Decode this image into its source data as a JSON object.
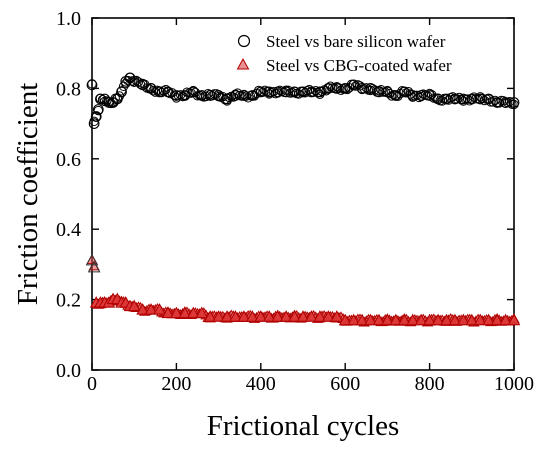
{
  "chart_data": {
    "type": "scatter",
    "title": "",
    "xlabel": "Frictional cycles",
    "ylabel": "Friction  coefficient",
    "xlim": [
      0,
      1000
    ],
    "ylim": [
      0.0,
      1.0
    ],
    "xticks": [
      0,
      200,
      400,
      600,
      800,
      1000
    ],
    "xtick_labels": [
      "0",
      "200",
      "400",
      "600",
      "800",
      "1000"
    ],
    "yticks": [
      0.0,
      0.2,
      0.4,
      0.6,
      0.8,
      1.0
    ],
    "ytick_labels": [
      "0.0",
      "0.2",
      "0.4",
      "0.6",
      "0.8",
      "1.0"
    ],
    "grid": false,
    "legend_position": "top-right",
    "series": [
      {
        "name": "Steel vs bare silicon wafer",
        "marker": "circle",
        "color": "#000000",
        "x": [
          0,
          5,
          10,
          15,
          20,
          30,
          40,
          50,
          60,
          70,
          80,
          90,
          100,
          120,
          140,
          160,
          180,
          200,
          220,
          240,
          260,
          280,
          300,
          320,
          340,
          360,
          380,
          400,
          420,
          440,
          460,
          480,
          500,
          520,
          540,
          560,
          580,
          600,
          620,
          640,
          660,
          680,
          700,
          720,
          740,
          760,
          780,
          800,
          820,
          840,
          860,
          880,
          900,
          920,
          940,
          960,
          980,
          1000
        ],
        "y": [
          0.81,
          0.7,
          0.72,
          0.74,
          0.77,
          0.77,
          0.76,
          0.76,
          0.77,
          0.79,
          0.82,
          0.83,
          0.82,
          0.81,
          0.8,
          0.79,
          0.79,
          0.78,
          0.78,
          0.79,
          0.78,
          0.78,
          0.78,
          0.77,
          0.78,
          0.78,
          0.78,
          0.79,
          0.79,
          0.79,
          0.79,
          0.79,
          0.79,
          0.79,
          0.79,
          0.8,
          0.8,
          0.8,
          0.81,
          0.8,
          0.8,
          0.79,
          0.79,
          0.78,
          0.79,
          0.78,
          0.78,
          0.78,
          0.77,
          0.77,
          0.77,
          0.77,
          0.77,
          0.77,
          0.77,
          0.76,
          0.76,
          0.76
        ]
      },
      {
        "name": "Steel vs CBG-coated wafer",
        "marker": "triangle",
        "color": "#cc1f1f",
        "x": [
          0,
          5,
          10,
          20,
          30,
          40,
          50,
          60,
          70,
          80,
          90,
          100,
          120,
          140,
          160,
          180,
          200,
          220,
          240,
          260,
          280,
          300,
          320,
          340,
          360,
          380,
          400,
          420,
          440,
          460,
          480,
          500,
          520,
          540,
          560,
          580,
          600,
          620,
          640,
          660,
          680,
          700,
          720,
          740,
          760,
          780,
          800,
          820,
          840,
          860,
          880,
          900,
          920,
          940,
          960,
          980,
          1000
        ],
        "y": [
          0.31,
          0.29,
          0.19,
          0.19,
          0.19,
          0.19,
          0.2,
          0.2,
          0.19,
          0.19,
          0.18,
          0.18,
          0.17,
          0.17,
          0.17,
          0.16,
          0.16,
          0.16,
          0.16,
          0.16,
          0.15,
          0.15,
          0.15,
          0.15,
          0.15,
          0.15,
          0.15,
          0.15,
          0.15,
          0.15,
          0.15,
          0.15,
          0.15,
          0.15,
          0.15,
          0.15,
          0.14,
          0.14,
          0.14,
          0.14,
          0.14,
          0.14,
          0.14,
          0.14,
          0.14,
          0.14,
          0.14,
          0.14,
          0.14,
          0.14,
          0.14,
          0.14,
          0.14,
          0.14,
          0.14,
          0.14,
          0.14
        ]
      }
    ]
  }
}
